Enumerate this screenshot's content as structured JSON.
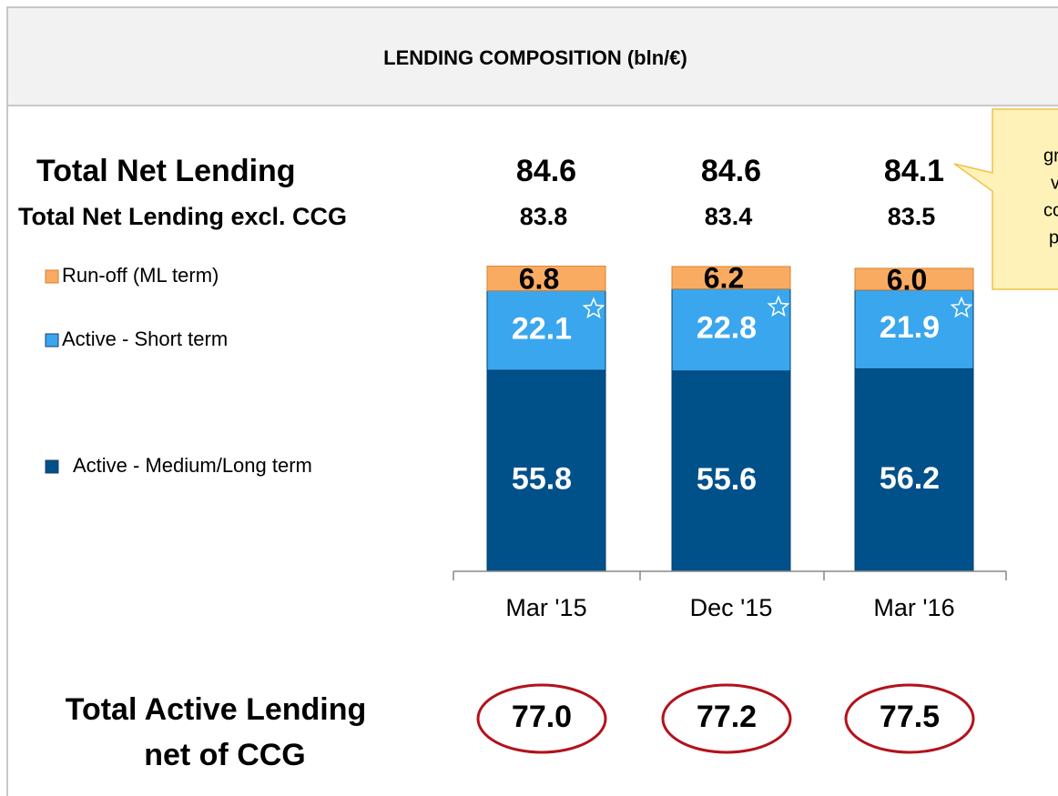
{
  "chart_data": {
    "type": "stacked_bar",
    "title": "LENDING COMPOSITION (bln/€)",
    "categories": [
      "Mar '15",
      "Dec '15",
      "Mar '16"
    ],
    "series": [
      {
        "name": "Active - Medium/Long term",
        "color": "#00508a",
        "values": [
          55.8,
          55.6,
          56.2
        ],
        "value_labels": [
          "55.8",
          "55.6",
          "56.2"
        ]
      },
      {
        "name": "Active - Short term",
        "color": "#3aa6ee",
        "values": [
          22.1,
          22.8,
          21.9
        ],
        "value_labels": [
          "22.1",
          "22.8",
          "21.9"
        ]
      },
      {
        "name": "Run-off (ML term)",
        "color": "#f9ab62",
        "values": [
          6.8,
          6.2,
          6.0
        ],
        "value_labels": [
          "6.8",
          "6.2",
          "6.0"
        ]
      }
    ],
    "totals": [
      {
        "name": "Total Net Lending",
        "values": [
          84.6,
          84.6,
          84.1
        ],
        "value_labels": [
          "84.6",
          "84.6",
          "84.1"
        ]
      },
      {
        "name": "Total Net Lending excl. CCG",
        "values": [
          83.8,
          83.4,
          83.5
        ],
        "value_labels": [
          "83.8",
          "83.4",
          "83.5"
        ]
      }
    ],
    "active_total": {
      "name": [
        "Total Active Lending",
        "net of CCG"
      ],
      "values": [
        77.0,
        77.2,
        77.5
      ],
      "value_labels": [
        "77.0",
        "77.2",
        "77.5"
      ]
    },
    "callout": [
      "gr",
      "v",
      "co",
      "p"
    ]
  }
}
